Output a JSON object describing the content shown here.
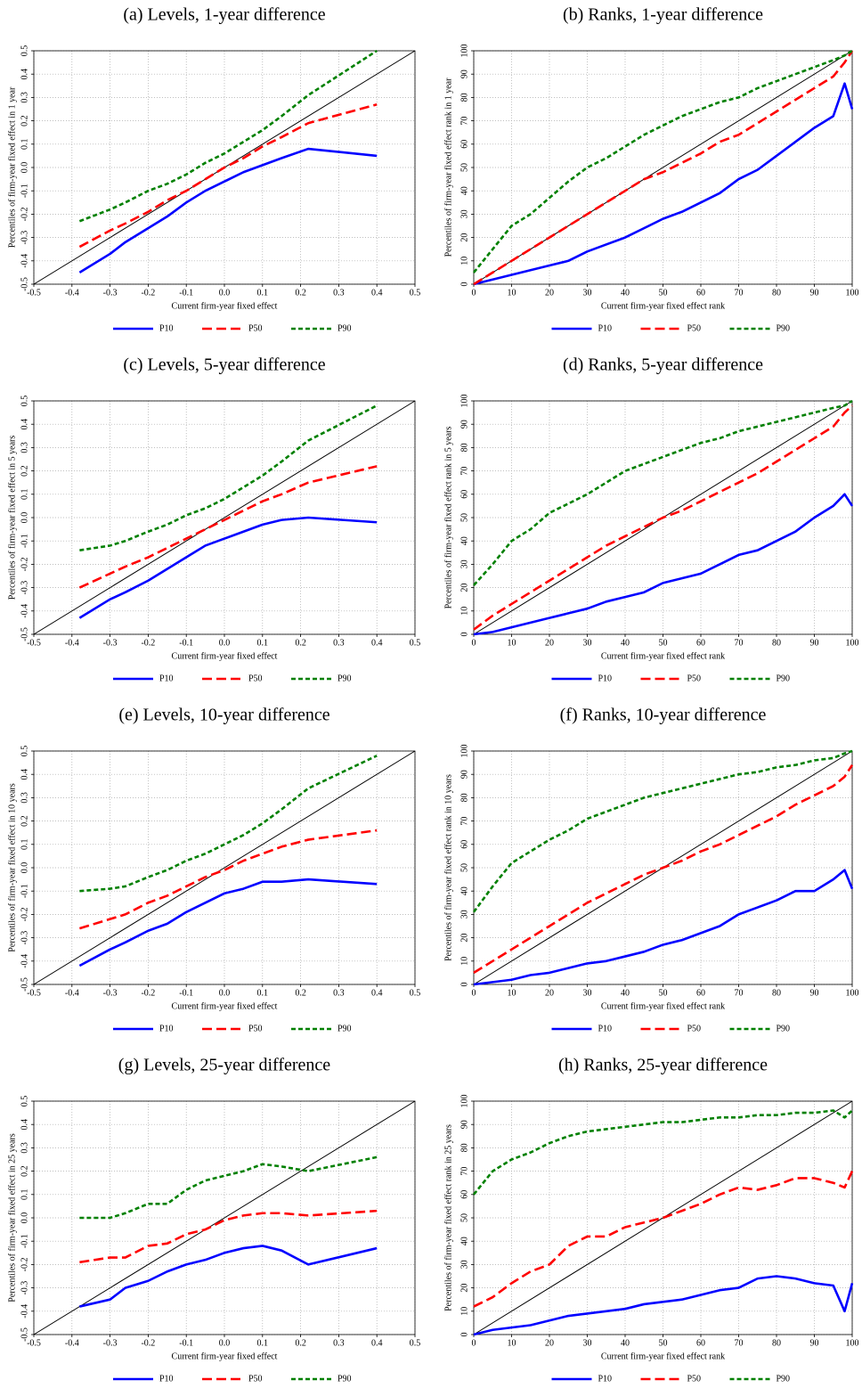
{
  "chart_data": [
    {
      "type": "line",
      "title": "(a) Levels, 1-year difference",
      "xlabel": "Current firm-year fixed effect",
      "ylabel": "Percentiles of firm-year fixed effect in 1 year",
      "x": [
        -0.38,
        -0.3,
        -0.26,
        -0.2,
        -0.15,
        -0.1,
        -0.05,
        0,
        0.05,
        0.1,
        0.15,
        0.22,
        0.4
      ],
      "series": [
        {
          "name": "P10",
          "color": "#0000ff",
          "line_style": "solid",
          "values": [
            -0.45,
            -0.37,
            -0.32,
            -0.26,
            -0.21,
            -0.15,
            -0.1,
            -0.06,
            -0.02,
            0.01,
            0.04,
            0.08,
            0.05
          ]
        },
        {
          "name": "P50",
          "color": "#ff0000",
          "line_style": "dashed",
          "values": [
            -0.34,
            -0.27,
            -0.24,
            -0.19,
            -0.14,
            -0.1,
            -0.05,
            0.0,
            0.04,
            0.09,
            0.13,
            0.19,
            0.27
          ]
        },
        {
          "name": "P90",
          "color": "#008000",
          "line_style": "dotted",
          "values": [
            -0.23,
            -0.18,
            -0.15,
            -0.1,
            -0.07,
            -0.03,
            0.02,
            0.06,
            0.11,
            0.16,
            0.22,
            0.31,
            0.5
          ]
        }
      ],
      "xlim": [
        -0.5,
        0.5
      ],
      "ylim": [
        -0.5,
        0.5
      ],
      "xticks": [
        -0.5,
        -0.4,
        -0.3,
        -0.2,
        -0.1,
        {
          "value": 0,
          "label": "0.0"
        },
        0.1,
        0.2,
        0.3,
        0.4,
        0.5
      ],
      "yticks": [
        -0.5,
        -0.4,
        -0.3,
        -0.2,
        -0.1,
        {
          "value": 0,
          "label": "0.0"
        },
        0.1,
        0.2,
        0.3,
        0.4,
        0.5
      ],
      "grid": true,
      "diagonal": true,
      "legend": "bottom"
    },
    {
      "type": "line",
      "title": "(b) Ranks, 1-year difference",
      "xlabel": "Current firm-year fixed effect rank",
      "ylabel": "Percentiles of firm-year fixed effect rank in 1 year",
      "x": [
        0,
        5,
        10,
        15,
        20,
        25,
        30,
        35,
        40,
        45,
        50,
        55,
        60,
        65,
        70,
        75,
        80,
        85,
        90,
        95,
        98,
        100
      ],
      "series": [
        {
          "name": "P10",
          "color": "#0000ff",
          "line_style": "solid",
          "values": [
            0,
            2,
            4,
            6,
            8,
            10,
            14,
            17,
            20,
            24,
            28,
            31,
            35,
            39,
            45,
            49,
            55,
            61,
            67,
            72,
            86,
            75
          ]
        },
        {
          "name": "P50",
          "color": "#ff0000",
          "line_style": "dashed",
          "values": [
            0,
            5,
            10,
            15,
            20,
            25,
            30,
            35,
            40,
            45,
            48,
            52,
            56,
            61,
            64,
            69,
            74,
            79,
            84,
            89,
            95,
            100
          ]
        },
        {
          "name": "P90",
          "color": "#008000",
          "line_style": "dotted",
          "values": [
            5,
            15,
            25,
            30,
            37,
            44,
            50,
            54,
            59,
            64,
            68,
            72,
            75,
            78,
            80,
            84,
            87,
            90,
            93,
            96,
            98,
            100
          ]
        }
      ],
      "xlim": [
        0,
        100
      ],
      "ylim": [
        0,
        100
      ],
      "xticks": [
        0,
        10,
        20,
        30,
        40,
        50,
        60,
        70,
        80,
        90,
        100
      ],
      "yticks": [
        0,
        10,
        20,
        30,
        40,
        50,
        60,
        70,
        80,
        90,
        100
      ],
      "grid": true,
      "diagonal": true,
      "legend": "bottom"
    },
    {
      "type": "line",
      "title": "(c) Levels, 5-year difference",
      "xlabel": "Current firm-year fixed effect",
      "ylabel": "Percentiles of firm-year fixed effect in 5 years",
      "x": [
        -0.38,
        -0.3,
        -0.26,
        -0.2,
        -0.15,
        -0.1,
        -0.05,
        0,
        0.05,
        0.1,
        0.15,
        0.22,
        0.4
      ],
      "series": [
        {
          "name": "P10",
          "color": "#0000ff",
          "line_style": "solid",
          "values": [
            -0.43,
            -0.35,
            -0.32,
            -0.27,
            -0.22,
            -0.17,
            -0.12,
            -0.09,
            -0.06,
            -0.03,
            -0.01,
            0.0,
            -0.02
          ]
        },
        {
          "name": "P50",
          "color": "#ff0000",
          "line_style": "dashed",
          "values": [
            -0.3,
            -0.24,
            -0.21,
            -0.17,
            -0.13,
            -0.09,
            -0.05,
            -0.01,
            0.03,
            0.07,
            0.1,
            0.15,
            0.22
          ]
        },
        {
          "name": "P90",
          "color": "#008000",
          "line_style": "dotted",
          "values": [
            -0.14,
            -0.12,
            -0.1,
            -0.06,
            -0.03,
            0.01,
            0.04,
            0.08,
            0.13,
            0.18,
            0.24,
            0.33,
            0.48
          ]
        }
      ],
      "xlim": [
        -0.5,
        0.5
      ],
      "ylim": [
        -0.5,
        0.5
      ],
      "xticks": [
        -0.5,
        -0.4,
        -0.3,
        -0.2,
        -0.1,
        {
          "value": 0,
          "label": "0.0"
        },
        0.1,
        0.2,
        0.3,
        0.4,
        0.5
      ],
      "yticks": [
        -0.5,
        -0.4,
        -0.3,
        -0.2,
        -0.1,
        {
          "value": 0,
          "label": "0.0"
        },
        0.1,
        0.2,
        0.3,
        0.4,
        0.5
      ],
      "grid": true,
      "diagonal": true,
      "legend": "bottom"
    },
    {
      "type": "line",
      "title": "(d) Ranks, 5-year difference",
      "xlabel": "Current firm-year fixed effect rank",
      "ylabel": "Percentiles of firm-year fixed effect rank in 5 years",
      "x": [
        0,
        5,
        10,
        15,
        20,
        25,
        30,
        35,
        40,
        45,
        50,
        55,
        60,
        65,
        70,
        75,
        80,
        85,
        90,
        95,
        98,
        100
      ],
      "series": [
        {
          "name": "P10",
          "color": "#0000ff",
          "line_style": "solid",
          "values": [
            0,
            1,
            3,
            5,
            7,
            9,
            11,
            14,
            16,
            18,
            22,
            24,
            26,
            30,
            34,
            36,
            40,
            44,
            50,
            55,
            60,
            55
          ]
        },
        {
          "name": "P50",
          "color": "#ff0000",
          "line_style": "dashed",
          "values": [
            2,
            8,
            13,
            18,
            23,
            28,
            33,
            38,
            42,
            46,
            50,
            53,
            57,
            61,
            65,
            69,
            74,
            79,
            84,
            89,
            95,
            98
          ]
        },
        {
          "name": "P90",
          "color": "#008000",
          "line_style": "dotted",
          "values": [
            21,
            30,
            40,
            45,
            52,
            56,
            60,
            65,
            70,
            73,
            76,
            79,
            82,
            84,
            87,
            89,
            91,
            93,
            95,
            97,
            98,
            100
          ]
        }
      ],
      "xlim": [
        0,
        100
      ],
      "ylim": [
        0,
        100
      ],
      "xticks": [
        0,
        10,
        20,
        30,
        40,
        50,
        60,
        70,
        80,
        90,
        100
      ],
      "yticks": [
        0,
        10,
        20,
        30,
        40,
        50,
        60,
        70,
        80,
        90,
        100
      ],
      "grid": true,
      "diagonal": true,
      "legend": "bottom"
    },
    {
      "type": "line",
      "title": "(e) Levels, 10-year difference",
      "xlabel": "Current firm-year fixed effect",
      "ylabel": "Percentiles of firm-year fixed effect in 10 years",
      "x": [
        -0.38,
        -0.3,
        -0.26,
        -0.2,
        -0.15,
        -0.1,
        -0.05,
        0,
        0.05,
        0.1,
        0.15,
        0.22,
        0.4
      ],
      "series": [
        {
          "name": "P10",
          "color": "#0000ff",
          "line_style": "solid",
          "values": [
            -0.42,
            -0.35,
            -0.32,
            -0.27,
            -0.24,
            -0.19,
            -0.15,
            -0.11,
            -0.09,
            -0.06,
            -0.06,
            -0.05,
            -0.07
          ]
        },
        {
          "name": "P50",
          "color": "#ff0000",
          "line_style": "dashed",
          "values": [
            -0.26,
            -0.22,
            -0.2,
            -0.15,
            -0.12,
            -0.08,
            -0.04,
            -0.01,
            0.03,
            0.06,
            0.09,
            0.12,
            0.16
          ]
        },
        {
          "name": "P90",
          "color": "#008000",
          "line_style": "dotted",
          "values": [
            -0.1,
            -0.09,
            -0.08,
            -0.04,
            -0.01,
            0.03,
            0.06,
            0.1,
            0.14,
            0.19,
            0.25,
            0.34,
            0.48
          ]
        }
      ],
      "xlim": [
        -0.5,
        0.5
      ],
      "ylim": [
        -0.5,
        0.5
      ],
      "xticks": [
        -0.5,
        -0.4,
        -0.3,
        -0.2,
        -0.1,
        {
          "value": 0,
          "label": "0.0"
        },
        0.1,
        0.2,
        0.3,
        0.4,
        0.5
      ],
      "yticks": [
        -0.5,
        -0.4,
        -0.3,
        -0.2,
        -0.1,
        {
          "value": 0,
          "label": "0.0"
        },
        0.1,
        0.2,
        0.3,
        0.4,
        0.5
      ],
      "grid": true,
      "diagonal": true,
      "legend": "bottom"
    },
    {
      "type": "line",
      "title": "(f) Ranks, 10-year difference",
      "xlabel": "Current firm-year fixed effect rank",
      "ylabel": "Percentiles of firm-year fixed effect rank in 10 years",
      "x": [
        0,
        5,
        10,
        15,
        20,
        25,
        30,
        35,
        40,
        45,
        50,
        55,
        60,
        65,
        70,
        75,
        80,
        85,
        90,
        95,
        98,
        100
      ],
      "series": [
        {
          "name": "P10",
          "color": "#0000ff",
          "line_style": "solid",
          "values": [
            0,
            1,
            2,
            4,
            5,
            7,
            9,
            10,
            12,
            14,
            17,
            19,
            22,
            25,
            30,
            33,
            36,
            40,
            40,
            45,
            49,
            41
          ]
        },
        {
          "name": "P50",
          "color": "#ff0000",
          "line_style": "dashed",
          "values": [
            5,
            10,
            15,
            20,
            25,
            30,
            35,
            39,
            43,
            47,
            50,
            53,
            57,
            60,
            64,
            68,
            72,
            77,
            81,
            85,
            89,
            94
          ]
        },
        {
          "name": "P90",
          "color": "#008000",
          "line_style": "dotted",
          "values": [
            31,
            42,
            52,
            57,
            62,
            66,
            71,
            74,
            77,
            80,
            82,
            84,
            86,
            88,
            90,
            91,
            93,
            94,
            96,
            97,
            99,
            100
          ]
        }
      ],
      "xlim": [
        0,
        100
      ],
      "ylim": [
        0,
        100
      ],
      "xticks": [
        0,
        10,
        20,
        30,
        40,
        50,
        60,
        70,
        80,
        90,
        100
      ],
      "yticks": [
        0,
        10,
        20,
        30,
        40,
        50,
        60,
        70,
        80,
        90,
        100
      ],
      "grid": true,
      "diagonal": true,
      "legend": "bottom"
    },
    {
      "type": "line",
      "title": "(g) Levels, 25-year difference",
      "xlabel": "Current firm-year fixed effect",
      "ylabel": "Percentiles of firm-year fixed effect in 25 years",
      "x": [
        -0.38,
        -0.3,
        -0.26,
        -0.2,
        -0.15,
        -0.1,
        -0.05,
        0,
        0.05,
        0.1,
        0.15,
        0.22,
        0.4
      ],
      "series": [
        {
          "name": "P10",
          "color": "#0000ff",
          "line_style": "solid",
          "values": [
            -0.38,
            -0.35,
            -0.3,
            -0.27,
            -0.23,
            -0.2,
            -0.18,
            -0.15,
            -0.13,
            -0.12,
            -0.14,
            -0.2,
            -0.13
          ]
        },
        {
          "name": "P50",
          "color": "#ff0000",
          "line_style": "dashed",
          "values": [
            -0.19,
            -0.17,
            -0.17,
            -0.12,
            -0.11,
            -0.07,
            -0.05,
            -0.01,
            0.01,
            0.02,
            0.02,
            0.01,
            0.03
          ]
        },
        {
          "name": "P90",
          "color": "#008000",
          "line_style": "dotted",
          "values": [
            0.0,
            0.0,
            0.02,
            0.06,
            0.06,
            0.12,
            0.16,
            0.18,
            0.2,
            0.23,
            0.22,
            0.2,
            0.26
          ]
        }
      ],
      "xlim": [
        -0.5,
        0.5
      ],
      "ylim": [
        -0.5,
        0.5
      ],
      "xticks": [
        -0.5,
        -0.4,
        -0.3,
        -0.2,
        -0.1,
        {
          "value": 0,
          "label": "0.0"
        },
        0.1,
        0.2,
        0.3,
        0.4,
        0.5
      ],
      "yticks": [
        -0.5,
        -0.4,
        -0.3,
        -0.2,
        -0.1,
        {
          "value": 0,
          "label": "0.0"
        },
        0.1,
        0.2,
        0.3,
        0.4,
        0.5
      ],
      "grid": true,
      "diagonal": true,
      "legend": "bottom"
    },
    {
      "type": "line",
      "title": "(h) Ranks, 25-year difference",
      "xlabel": "Current firm-year fixed effect rank",
      "ylabel": "Percentiles of firm-year fixed effect rank in 25 years",
      "x": [
        0,
        5,
        10,
        15,
        20,
        25,
        30,
        35,
        40,
        45,
        50,
        55,
        60,
        65,
        70,
        75,
        80,
        85,
        90,
        95,
        98,
        100
      ],
      "series": [
        {
          "name": "P10",
          "color": "#0000ff",
          "line_style": "solid",
          "values": [
            0,
            2,
            3,
            4,
            6,
            8,
            9,
            10,
            11,
            13,
            14,
            15,
            17,
            19,
            20,
            24,
            25,
            24,
            22,
            21,
            10,
            22
          ]
        },
        {
          "name": "P50",
          "color": "#ff0000",
          "line_style": "dashed",
          "values": [
            12,
            16,
            22,
            27,
            30,
            38,
            42,
            42,
            46,
            48,
            50,
            53,
            56,
            60,
            63,
            62,
            64,
            67,
            67,
            65,
            63,
            70
          ]
        },
        {
          "name": "P90",
          "color": "#008000",
          "line_style": "dotted",
          "values": [
            60,
            70,
            75,
            78,
            82,
            85,
            87,
            88,
            89,
            90,
            91,
            91,
            92,
            93,
            93,
            94,
            94,
            95,
            95,
            96,
            93,
            96
          ]
        }
      ],
      "xlim": [
        0,
        100
      ],
      "ylim": [
        0,
        100
      ],
      "xticks": [
        0,
        10,
        20,
        30,
        40,
        50,
        60,
        70,
        80,
        90,
        100
      ],
      "yticks": [
        0,
        10,
        20,
        30,
        40,
        50,
        60,
        70,
        80,
        90,
        100
      ],
      "grid": true,
      "diagonal": true,
      "legend": "bottom"
    }
  ]
}
